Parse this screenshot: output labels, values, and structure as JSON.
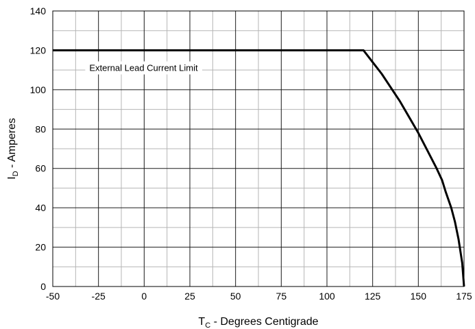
{
  "chart_data": {
    "type": "line",
    "title": "",
    "xlabel": {
      "main": "T",
      "sub": "C",
      "rest": " - Degrees Centigrade"
    },
    "ylabel": {
      "main": "I",
      "sub": "D",
      "rest": " - Amperes"
    },
    "xlim": [
      -50,
      175
    ],
    "ylim": [
      0,
      140
    ],
    "x_ticks": [
      -50,
      -25,
      0,
      25,
      50,
      75,
      100,
      125,
      150,
      175
    ],
    "y_ticks": [
      0,
      20,
      40,
      60,
      80,
      100,
      120,
      140
    ],
    "x_minor_step": 12.5,
    "y_minor_step": 10,
    "grid": true,
    "annotation": "External Lead Current Limit",
    "series": [
      {
        "x": [
          -50,
          120,
          125,
          130,
          135,
          140,
          145,
          150,
          155,
          160,
          163,
          165,
          168,
          170,
          172,
          174,
          175
        ],
        "y": [
          120,
          120,
          114,
          108,
          101,
          94,
          86,
          78,
          69,
          60,
          54,
          48,
          40,
          33,
          24,
          12,
          0
        ]
      }
    ]
  }
}
